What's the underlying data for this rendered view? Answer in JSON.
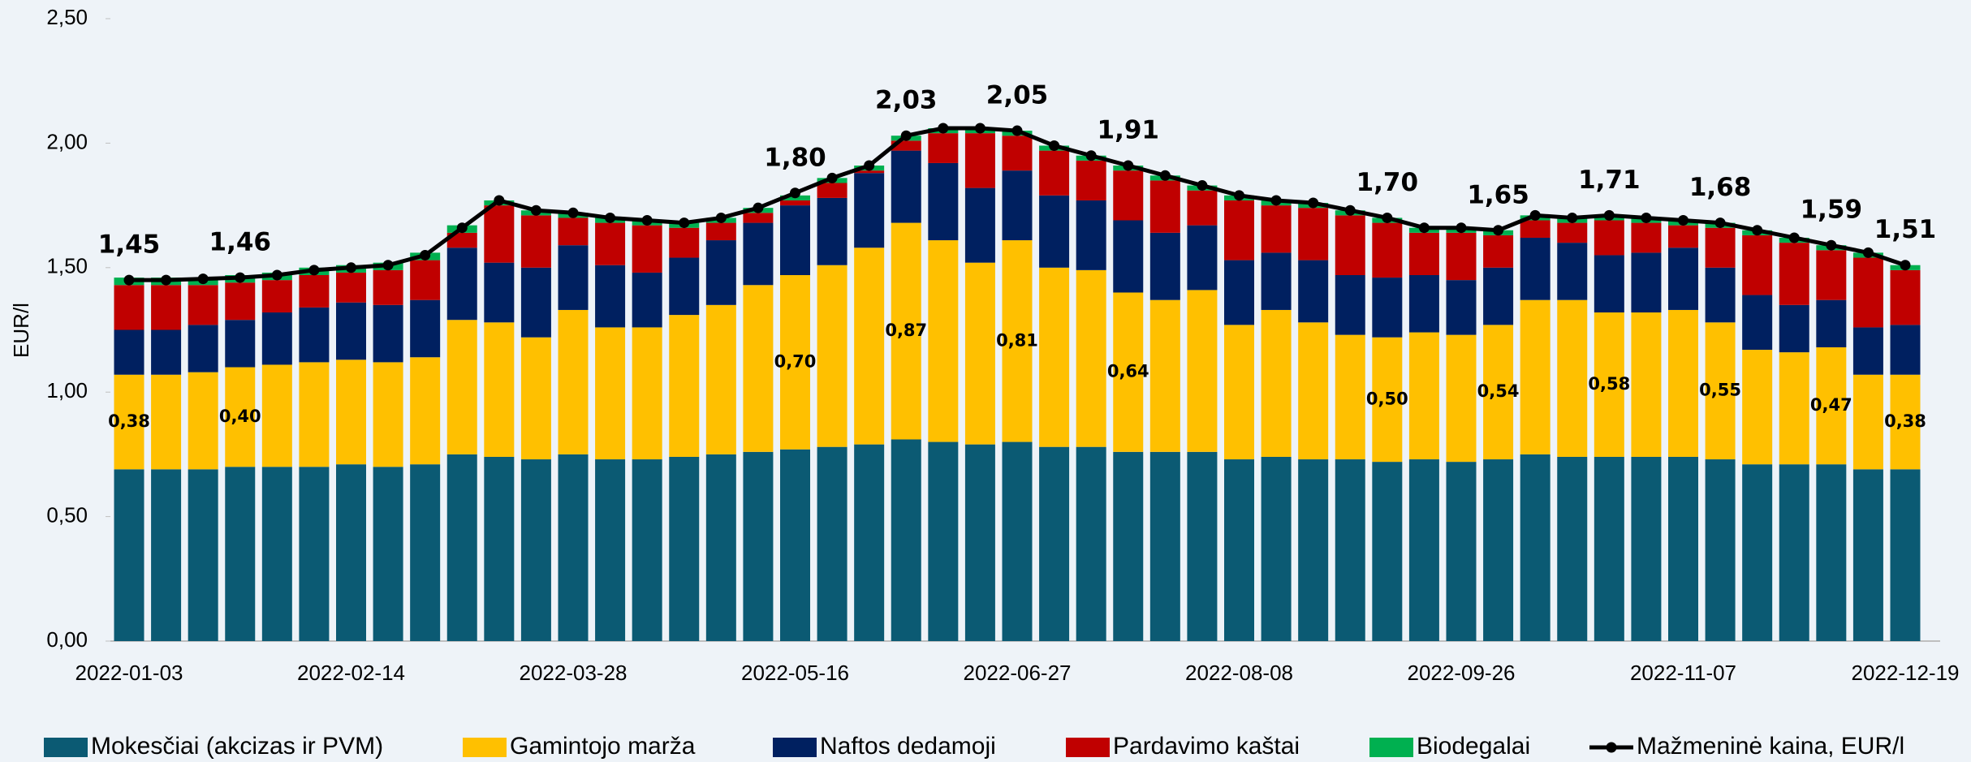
{
  "chart_data": {
    "type": "stacked-bar-line",
    "y_label": "EUR/l",
    "categories": [
      "2022-01-03",
      null,
      null,
      null,
      null,
      null,
      "2022-02-14",
      null,
      null,
      null,
      null,
      null,
      "2022-03-28",
      null,
      null,
      null,
      null,
      null,
      "2022-05-16",
      null,
      null,
      null,
      null,
      null,
      "2022-06-27",
      null,
      null,
      null,
      null,
      null,
      "2022-08-08",
      null,
      null,
      null,
      null,
      null,
      "2022-09-26",
      null,
      null,
      null,
      null,
      null,
      "2022-11-07",
      null,
      null,
      null,
      null,
      null,
      "2022-12-19"
    ],
    "ylim": [
      0,
      2.5
    ],
    "yticks": [
      {
        "value": 0,
        "label": "0,00"
      },
      {
        "value": 0.5,
        "label": "0,50"
      },
      {
        "value": 1,
        "label": "1,00"
      },
      {
        "value": 1.5,
        "label": "1,50"
      },
      {
        "value": 2,
        "label": "2,00"
      },
      {
        "value": 2.5,
        "label": "2,50"
      }
    ],
    "series": [
      {
        "name": "Mokesčiai (akcizas ir PVM)",
        "color": "#0b5a73",
        "values": [
          0.69,
          0.69,
          0.69,
          0.7,
          0.7,
          0.7,
          0.71,
          0.7,
          0.71,
          0.75,
          0.74,
          0.73,
          0.75,
          0.73,
          0.73,
          0.74,
          0.75,
          0.76,
          0.77,
          0.78,
          0.79,
          0.81,
          0.8,
          0.79,
          0.8,
          0.78,
          0.78,
          0.76,
          0.76,
          0.76,
          0.73,
          0.74,
          0.73,
          0.73,
          0.72,
          0.73,
          0.72,
          0.73,
          0.75,
          0.74,
          0.74,
          0.74,
          0.74,
          0.73,
          0.71,
          0.71,
          0.71,
          0.69,
          0.69
        ]
      },
      {
        "name": "Gamintojo marža",
        "color": "#ffc000",
        "values": [
          0.38,
          0.38,
          0.39,
          0.4,
          0.41,
          0.42,
          0.42,
          0.42,
          0.43,
          0.54,
          0.54,
          0.49,
          0.58,
          0.53,
          0.53,
          0.57,
          0.6,
          0.67,
          0.7,
          0.73,
          0.79,
          0.87,
          0.81,
          0.73,
          0.81,
          0.72,
          0.71,
          0.64,
          0.61,
          0.65,
          0.54,
          0.59,
          0.55,
          0.5,
          0.5,
          0.51,
          0.51,
          0.54,
          0.62,
          0.63,
          0.58,
          0.58,
          0.59,
          0.55,
          0.46,
          0.45,
          0.47,
          0.38,
          0.38
        ],
        "value_labels": [
          "0,38",
          null,
          null,
          "0,40",
          null,
          null,
          null,
          null,
          null,
          null,
          null,
          null,
          null,
          null,
          null,
          null,
          null,
          null,
          "0,70",
          null,
          null,
          "0,87",
          null,
          null,
          "0,81",
          null,
          null,
          "0,64",
          null,
          null,
          null,
          null,
          null,
          null,
          "0,50",
          null,
          null,
          "0,54",
          null,
          null,
          "0,58",
          null,
          null,
          "0,55",
          null,
          null,
          "0,47",
          null,
          "0,38"
        ]
      },
      {
        "name": "Naftos dedamoji",
        "color": "#002060",
        "values": [
          0.18,
          0.18,
          0.19,
          0.19,
          0.21,
          0.22,
          0.23,
          0.23,
          0.23,
          0.29,
          0.24,
          0.28,
          0.26,
          0.25,
          0.22,
          0.23,
          0.26,
          0.25,
          0.28,
          0.27,
          0.3,
          0.29,
          0.31,
          0.3,
          0.28,
          0.29,
          0.28,
          0.29,
          0.27,
          0.26,
          0.26,
          0.23,
          0.25,
          0.24,
          0.24,
          0.23,
          0.22,
          0.23,
          0.25,
          0.23,
          0.23,
          0.24,
          0.25,
          0.22,
          0.22,
          0.19,
          0.19,
          0.19,
          0.2
        ]
      },
      {
        "name": "Pardavimo kaštai",
        "color": "#c00000",
        "values": [
          0.18,
          0.18,
          0.16,
          0.15,
          0.13,
          0.13,
          0.12,
          0.14,
          0.16,
          0.06,
          0.23,
          0.21,
          0.11,
          0.17,
          0.19,
          0.12,
          0.07,
          0.04,
          0.02,
          0.06,
          0.01,
          0.04,
          0.12,
          0.22,
          0.14,
          0.18,
          0.16,
          0.2,
          0.21,
          0.14,
          0.24,
          0.19,
          0.21,
          0.24,
          0.22,
          0.17,
          0.19,
          0.13,
          0.07,
          0.08,
          0.14,
          0.12,
          0.09,
          0.16,
          0.24,
          0.25,
          0.2,
          0.28,
          0.22
        ]
      },
      {
        "name": "Biodegalai",
        "color": "#00b050",
        "values": [
          0.03,
          0.03,
          0.03,
          0.03,
          0.03,
          0.03,
          0.03,
          0.03,
          0.03,
          0.03,
          0.02,
          0.02,
          0.02,
          0.02,
          0.02,
          0.02,
          0.02,
          0.02,
          0.02,
          0.02,
          0.02,
          0.02,
          0.02,
          0.02,
          0.02,
          0.02,
          0.02,
          0.02,
          0.02,
          0.02,
          0.02,
          0.02,
          0.02,
          0.02,
          0.02,
          0.02,
          0.02,
          0.02,
          0.02,
          0.02,
          0.02,
          0.02,
          0.02,
          0.02,
          0.02,
          0.02,
          0.02,
          0.02,
          0.02
        ]
      },
      {
        "name": "Mažmeninė kaina, EUR/l",
        "color": "#000000",
        "kind": "line",
        "values": [
          1.45,
          1.45,
          1.455,
          1.46,
          1.47,
          1.49,
          1.5,
          1.51,
          1.55,
          1.66,
          1.77,
          1.73,
          1.72,
          1.7,
          1.69,
          1.68,
          1.7,
          1.74,
          1.8,
          1.86,
          1.91,
          2.03,
          2.06,
          2.06,
          2.05,
          1.99,
          1.95,
          1.91,
          1.87,
          1.83,
          1.79,
          1.77,
          1.76,
          1.73,
          1.7,
          1.66,
          1.66,
          1.65,
          1.71,
          1.7,
          1.71,
          1.7,
          1.69,
          1.68,
          1.65,
          1.62,
          1.59,
          1.56,
          1.51
        ],
        "value_labels": [
          "1,45",
          null,
          null,
          "1,46",
          null,
          null,
          null,
          null,
          null,
          null,
          null,
          null,
          null,
          null,
          null,
          null,
          null,
          null,
          "1,80",
          null,
          null,
          "2,03",
          null,
          null,
          "2,05",
          null,
          null,
          "1,91",
          null,
          null,
          null,
          null,
          null,
          null,
          "1,70",
          null,
          null,
          "1,65",
          null,
          null,
          "1,71",
          null,
          null,
          "1,68",
          null,
          null,
          "1,59",
          null,
          "1,51"
        ]
      }
    ]
  }
}
